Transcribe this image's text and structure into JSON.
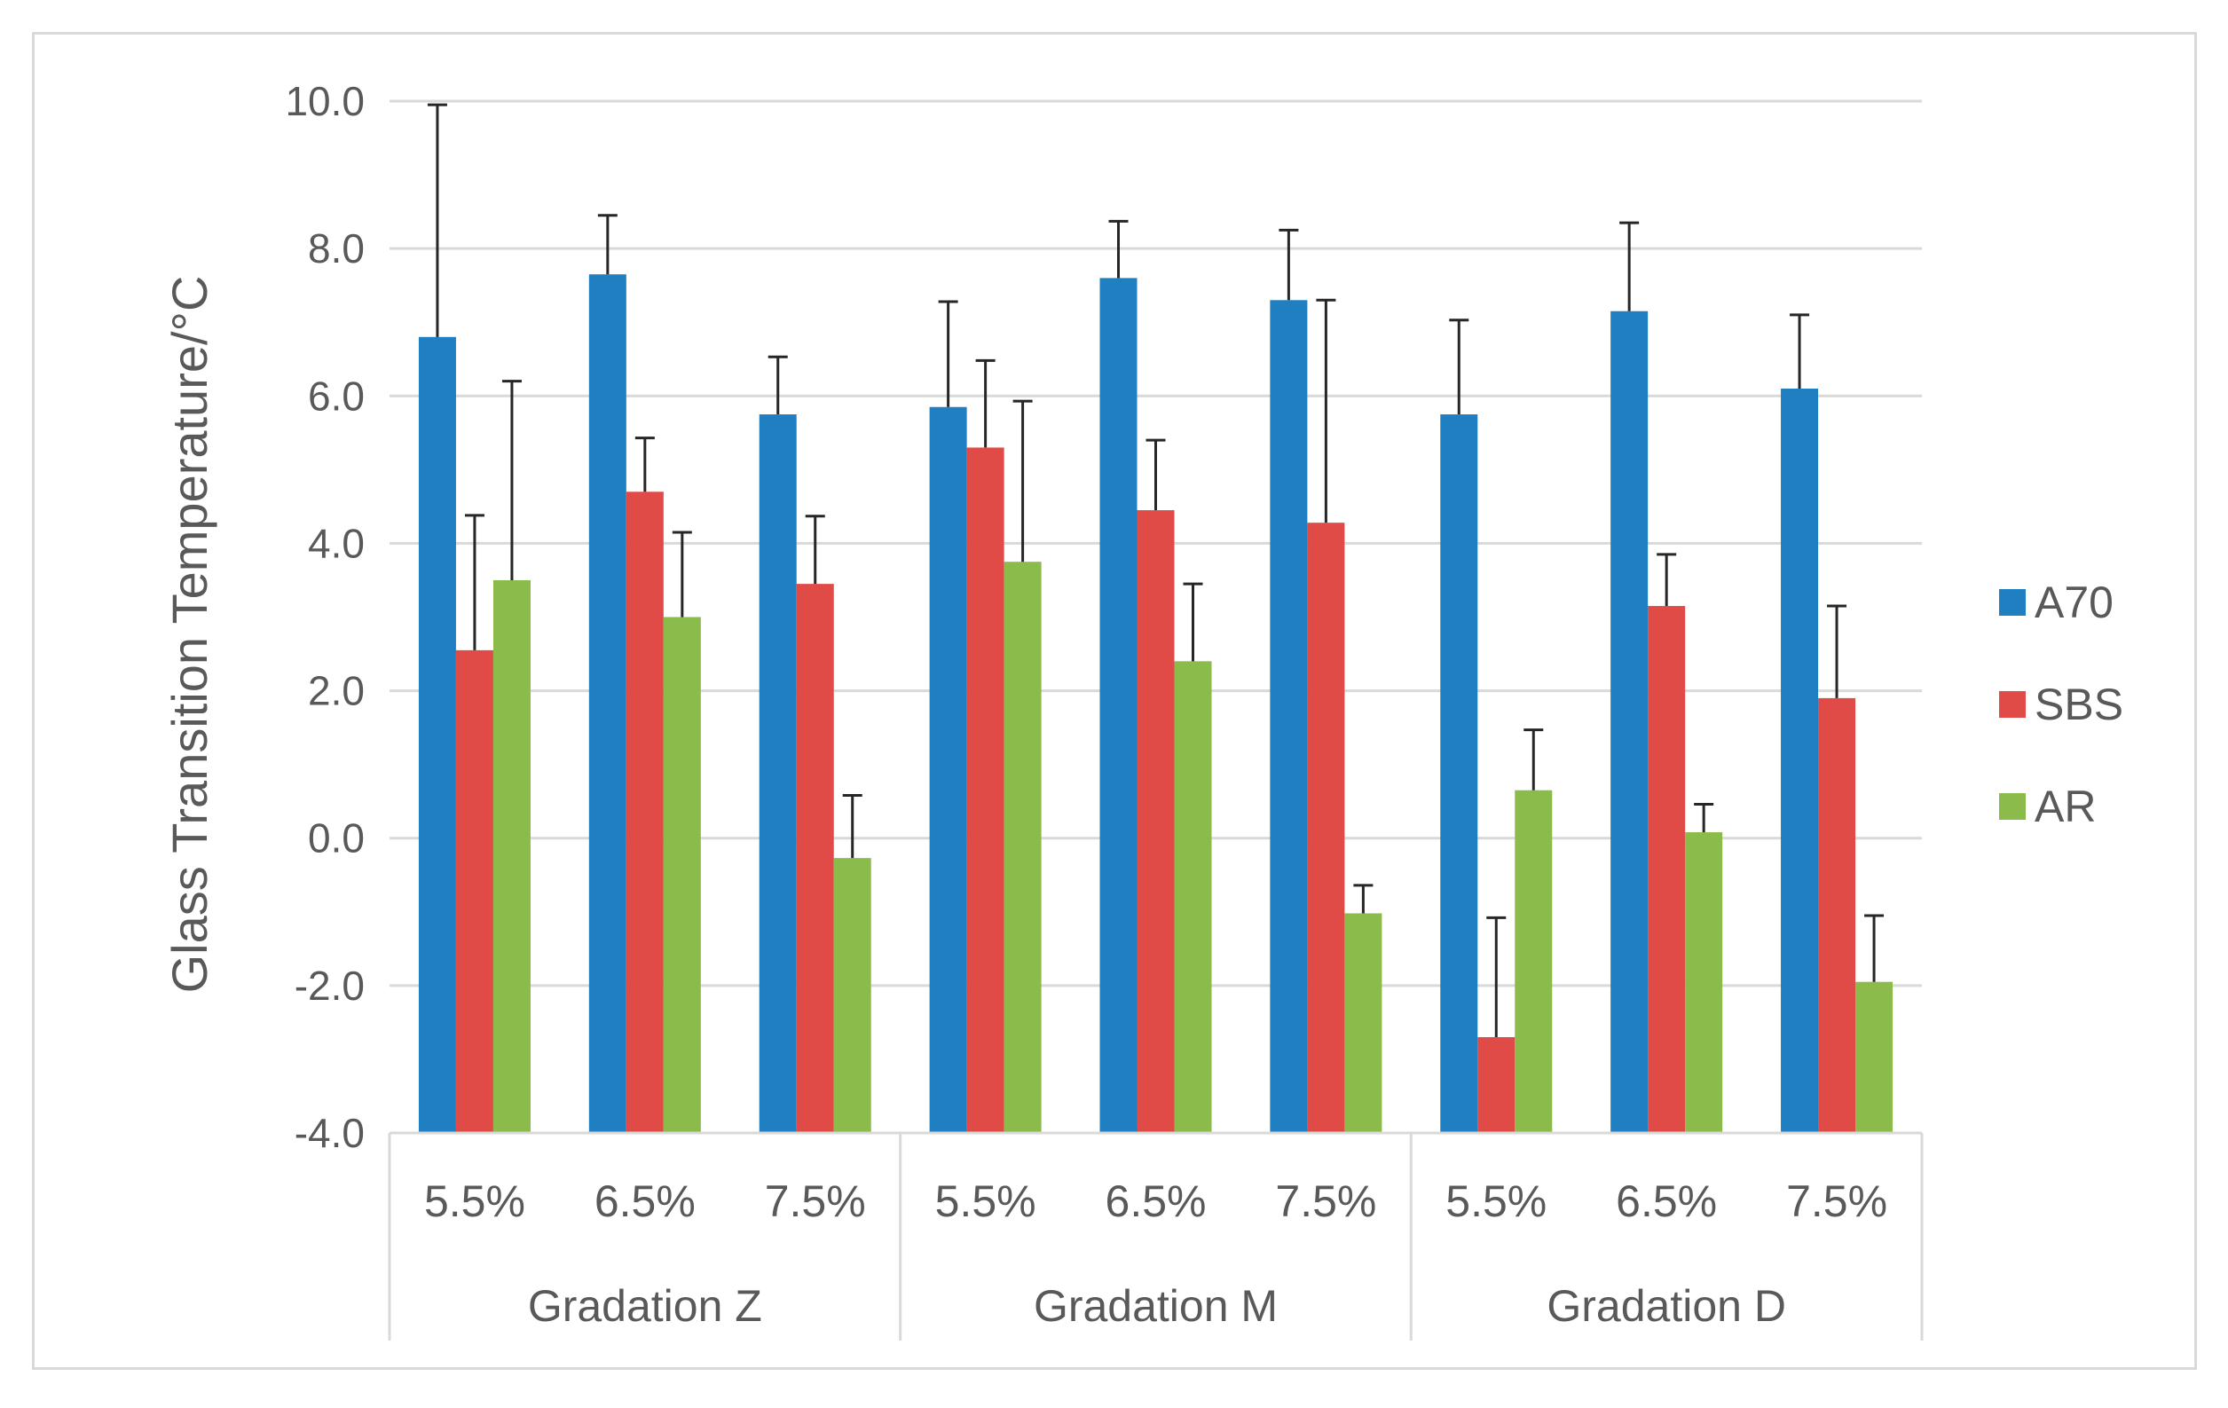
{
  "chart_data": {
    "type": "bar",
    "title": "",
    "ylabel": "Glass Transition Temperature/°C",
    "xlabel": "",
    "ylim": [
      -4,
      10
    ],
    "yticks": [
      "-4.0",
      "-2.0",
      "0.0",
      "2.0",
      "4.0",
      "6.0",
      "8.0",
      "10.0"
    ],
    "grid": true,
    "legend_position": "right",
    "groups": [
      {
        "label": "Gradation Z",
        "categories": [
          "5.5%",
          "6.5%",
          "7.5%"
        ]
      },
      {
        "label": "Gradation M",
        "categories": [
          "5.5%",
          "6.5%",
          "7.5%"
        ]
      },
      {
        "label": "Gradation D",
        "categories": [
          "5.5%",
          "6.5%",
          "7.5%"
        ]
      }
    ],
    "categories": [
      "5.5%",
      "6.5%",
      "7.5%",
      "5.5%",
      "6.5%",
      "7.5%",
      "5.5%",
      "6.5%",
      "7.5%"
    ],
    "series": [
      {
        "name": "A70",
        "color": "#1f7fc1",
        "values": [
          6.8,
          7.65,
          5.75,
          5.85,
          7.6,
          7.3,
          5.75,
          7.15,
          6.1
        ],
        "errors": [
          3.15,
          0.8,
          0.78,
          1.43,
          0.77,
          0.95,
          1.28,
          1.2,
          1.0
        ]
      },
      {
        "name": "SBS",
        "color": "#e04b48",
        "values": [
          2.55,
          4.7,
          3.45,
          5.3,
          4.45,
          4.28,
          -2.7,
          3.15,
          1.9
        ],
        "errors": [
          1.83,
          0.73,
          0.92,
          1.18,
          0.95,
          3.02,
          1.62,
          0.7,
          1.25
        ]
      },
      {
        "name": "AR",
        "color": "#8bbb4a",
        "values": [
          3.5,
          3.0,
          -0.27,
          3.75,
          2.4,
          -1.02,
          0.65,
          0.08,
          -1.95
        ],
        "errors": [
          2.7,
          1.15,
          0.85,
          2.18,
          1.05,
          0.38,
          0.82,
          0.38,
          0.9
        ]
      }
    ]
  }
}
